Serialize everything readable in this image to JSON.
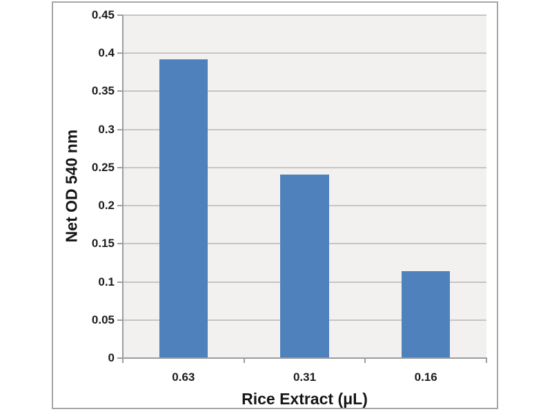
{
  "chart_data": {
    "type": "bar",
    "title": "",
    "xlabel": "Rice Extract (μL)",
    "ylabel": "Net OD 540 nm",
    "categories": [
      "0.63",
      "0.31",
      "0.16"
    ],
    "values": [
      0.392,
      0.241,
      0.114
    ],
    "ylim": [
      0,
      0.45
    ],
    "ytick_step": 0.05,
    "grid": true,
    "legend_position": "none",
    "colors": {
      "bar_fill": "#4f81bd",
      "plot_background": "#f2f1ef",
      "gridline": "#c6c5c4",
      "axis_line": "#9d9c9b",
      "frame_border": "#a5a5a5",
      "text": "#1c1c1c",
      "canvas_background": "#ffffff"
    }
  }
}
